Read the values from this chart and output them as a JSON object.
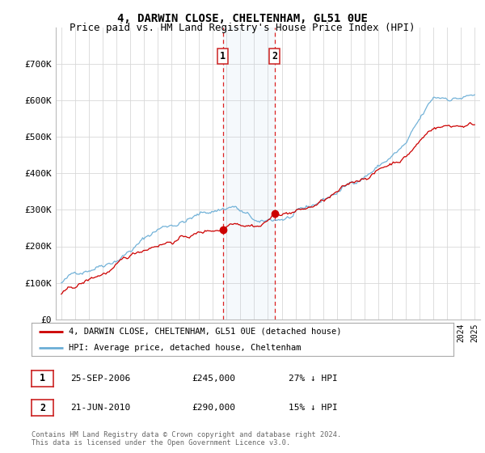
{
  "title": "4, DARWIN CLOSE, CHELTENHAM, GL51 0UE",
  "subtitle": "Price paid vs. HM Land Registry's House Price Index (HPI)",
  "ylim": [
    0,
    800000
  ],
  "yticks": [
    0,
    100000,
    200000,
    300000,
    400000,
    500000,
    600000,
    700000
  ],
  "ytick_labels": [
    "£0",
    "£100K",
    "£200K",
    "£300K",
    "£400K",
    "£500K",
    "£600K",
    "£700K"
  ],
  "hpi_color": "#6baed6",
  "price_color": "#cc0000",
  "transaction1_date": "25-SEP-2006",
  "transaction1_price": 245000,
  "transaction1_label": "1",
  "transaction1_hpi_diff": "27% ↓ HPI",
  "transaction1_x": 2006.73,
  "transaction2_date": "21-JUN-2010",
  "transaction2_price": 290000,
  "transaction2_label": "2",
  "transaction2_hpi_diff": "15% ↓ HPI",
  "transaction2_x": 2010.47,
  "legend_line1": "4, DARWIN CLOSE, CHELTENHAM, GL51 0UE (detached house)",
  "legend_line2": "HPI: Average price, detached house, Cheltenham",
  "footnote1": "Contains HM Land Registry data © Crown copyright and database right 2024.",
  "footnote2": "This data is licensed under the Open Government Licence v3.0.",
  "background_color": "#ffffff",
  "plot_bg_color": "#ffffff",
  "grid_color": "#d8d8d8",
  "title_fontsize": 10,
  "subtitle_fontsize": 9,
  "tick_fontsize": 8
}
